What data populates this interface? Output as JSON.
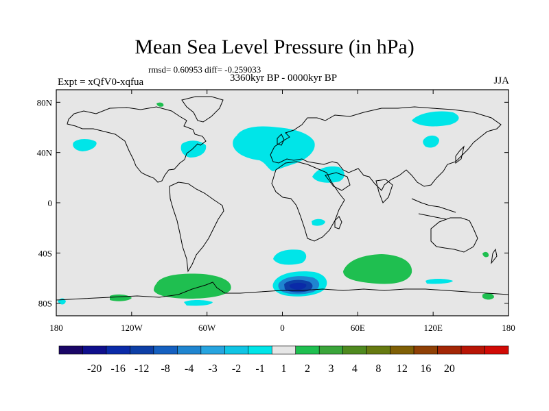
{
  "title": "Mean Sea Level Pressure (in hPa)",
  "stats": "rmsd= 0.60953 diff= -0.259033",
  "period": "3360kyr BP - 0000kyr BP",
  "experiment": "Expt = xQfV0-xqfua",
  "season": "JJA",
  "chart_data": {
    "type": "map",
    "projection": "cylindrical-equidistant",
    "x_ticks": [
      {
        "label": "180",
        "lon": -180
      },
      {
        "label": "120W",
        "lon": -120
      },
      {
        "label": "60W",
        "lon": -60
      },
      {
        "label": "0",
        "lon": 0
      },
      {
        "label": "60E",
        "lon": 60
      },
      {
        "label": "120E",
        "lon": 120
      },
      {
        "label": "180",
        "lon": 180
      }
    ],
    "y_ticks": [
      {
        "label": "80N",
        "lat": 80
      },
      {
        "label": "40N",
        "lat": 40
      },
      {
        "label": "0",
        "lat": 0
      },
      {
        "label": "40S",
        "lat": -40
      },
      {
        "label": "80S",
        "lat": -80
      }
    ],
    "colorbar": {
      "labels": [
        "-20",
        "-16",
        "-12",
        "-8",
        "-4",
        "-3",
        "-2",
        "-1",
        "1",
        "2",
        "3",
        "4",
        "8",
        "12",
        "16",
        "20"
      ],
      "colors": [
        "#1a0666",
        "#0f0f8c",
        "#0a2aa8",
        "#0d3fa6",
        "#1560c0",
        "#1f85d0",
        "#27a4df",
        "#10c4e4",
        "#00e5e8",
        "#e6e6e6",
        "#1fbf50",
        "#3aa53a",
        "#4f8a1f",
        "#667a10",
        "#7f5f05",
        "#8f4005",
        "#a32605",
        "#b81505",
        "#d10a05"
      ]
    },
    "anomaly_regions": [
      {
        "name": "N. Atlantic / Europe low",
        "color": "#00e5e8",
        "sign": "negative"
      },
      {
        "name": "N. Pacific low",
        "color": "#00e5e8",
        "sign": "negative"
      },
      {
        "name": "Arabia low",
        "color": "#00e5e8",
        "sign": "negative"
      },
      {
        "name": "Siberia low",
        "color": "#00e5e8",
        "sign": "negative"
      },
      {
        "name": "S. Atlantic low",
        "color": "#00e5e8",
        "sign": "negative"
      },
      {
        "name": "Southern Ocean deep low",
        "color": "#0a2aa8",
        "sign": "negative"
      },
      {
        "name": "Indian Ocean high",
        "color": "#1fbf50",
        "sign": "positive"
      },
      {
        "name": "Amundsen Sea high",
        "color": "#1fbf50",
        "sign": "positive"
      }
    ]
  }
}
